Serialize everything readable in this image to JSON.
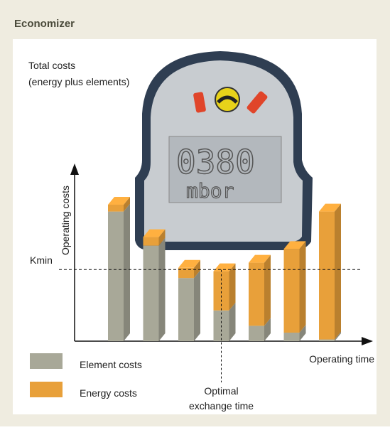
{
  "header": {
    "title": "Economizer"
  },
  "device": {
    "display": "0380",
    "unit": "mbor"
  },
  "chart_data": {
    "type": "stacked-bar-3d",
    "annotation": [
      "Total costs",
      "(energy plus elements)"
    ],
    "y_label": "Operating costs",
    "x_label": "Operating time",
    "categories": [
      null,
      null,
      null,
      null,
      null,
      null,
      null
    ],
    "series": [
      {
        "name": "Element costs",
        "color": "#a8a898",
        "values": [
          76,
          56,
          37,
          18,
          9,
          5,
          1
        ]
      },
      {
        "name": "Energy costs",
        "color": "#e8a03a",
        "values": [
          4,
          5,
          6,
          23,
          37,
          49,
          75
        ]
      }
    ],
    "ylim": [
      0,
      100
    ],
    "kmin": {
      "label": "Kmin",
      "value": 42
    },
    "optimal": {
      "index": 3,
      "label": [
        "Optimal",
        "exchange time"
      ]
    }
  }
}
